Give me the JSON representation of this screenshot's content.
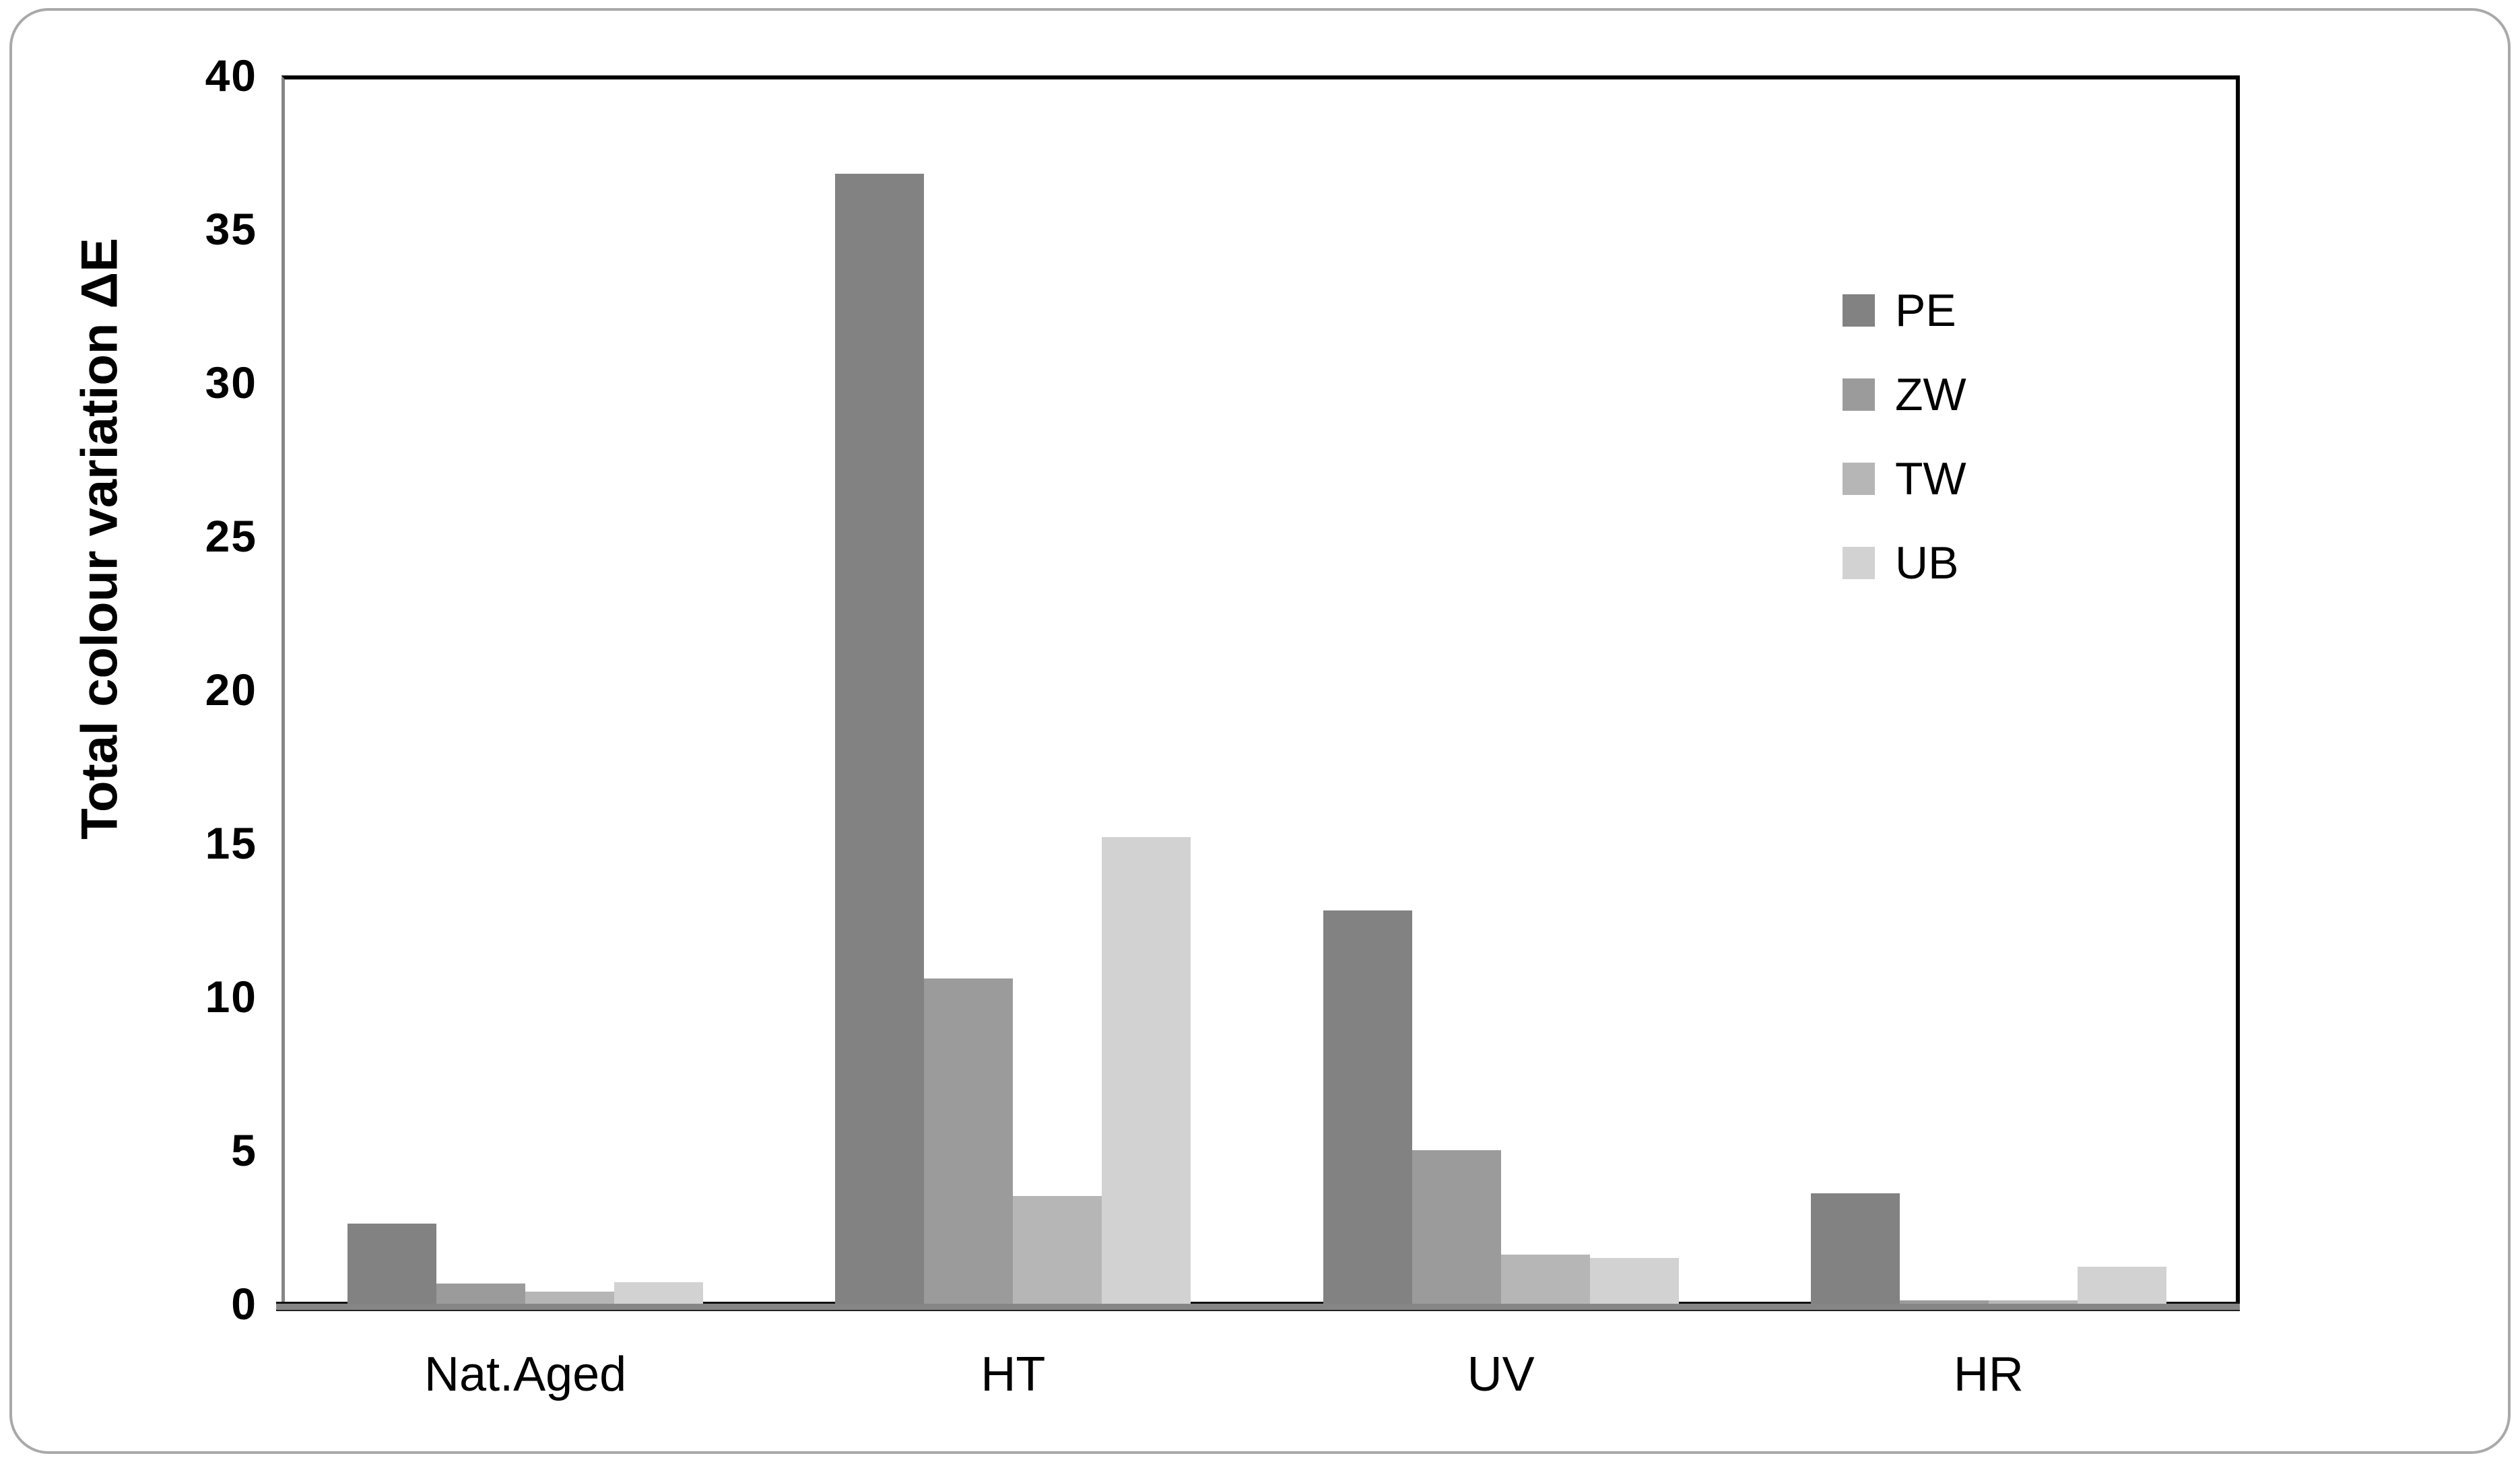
{
  "figure": {
    "outer_border_color": "#a9a9a9",
    "background": "#ffffff",
    "axis_line_color": "#868686",
    "frame_line_color": "#000000"
  },
  "chart_data": {
    "type": "bar",
    "title": "",
    "xlabel": "",
    "ylabel": "Total colour variation ΔE",
    "categories": [
      "Nat.Aged",
      "HT",
      "UV",
      "HR"
    ],
    "series": [
      {
        "name": "PE",
        "color": "#828282",
        "values": [
          2.6,
          36.8,
          12.8,
          3.6
        ]
      },
      {
        "name": "ZW",
        "color": "#9b9b9b",
        "values": [
          0.65,
          10.6,
          5.0,
          0.1
        ]
      },
      {
        "name": "TW",
        "color": "#b6b6b6",
        "values": [
          0.4,
          3.5,
          1.6,
          0.1
        ]
      },
      {
        "name": "UB",
        "color": "#d2d2d2",
        "values": [
          0.7,
          15.2,
          1.5,
          1.2
        ]
      }
    ],
    "ylim": [
      0,
      40
    ],
    "ytick_step": 5,
    "yticks": [
      0,
      5,
      10,
      15,
      20,
      25,
      30,
      35,
      40
    ],
    "grid": false,
    "legend_position": "upper-right-inside"
  }
}
